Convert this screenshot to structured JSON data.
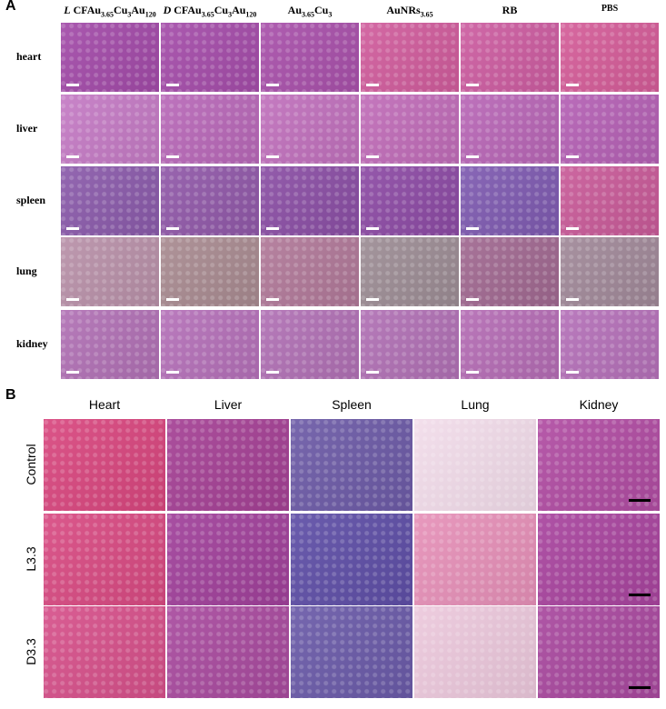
{
  "panel_a": {
    "label": "A",
    "columns": [
      [
        {
          "text": "L",
          "italic": true
        },
        {
          "text": " CFAu"
        },
        {
          "text": "3.65",
          "sub": true
        },
        {
          "text": "Cu"
        },
        {
          "text": "3",
          "sub": true
        },
        {
          "text": "Au"
        },
        {
          "text": "120",
          "sub": true
        }
      ],
      [
        {
          "text": "D",
          "italic": true
        },
        {
          "text": " CFAu"
        },
        {
          "text": "3.65",
          "sub": true
        },
        {
          "text": "Cu"
        },
        {
          "text": "3",
          "sub": true
        },
        {
          "text": "Au"
        },
        {
          "text": "120",
          "sub": true
        }
      ],
      [
        {
          "text": "Au"
        },
        {
          "text": "3.65",
          "sub": true
        },
        {
          "text": "Cu"
        },
        {
          "text": "3",
          "sub": true
        }
      ],
      [
        {
          "text": "AuNRs"
        },
        {
          "text": "3.65",
          "sub": true
        }
      ],
      [
        {
          "text": "RB"
        }
      ],
      [
        {
          "text": "PBS"
        }
      ]
    ],
    "rows": [
      "heart",
      "liver",
      "spleen",
      "lung",
      "kidney"
    ]
  },
  "panel_b": {
    "label": "B",
    "columns": [
      "Heart",
      "Liver",
      "Spleen",
      "Lung",
      "Kidney"
    ],
    "rows": [
      "Control",
      "L3.3",
      "D3.3"
    ]
  }
}
